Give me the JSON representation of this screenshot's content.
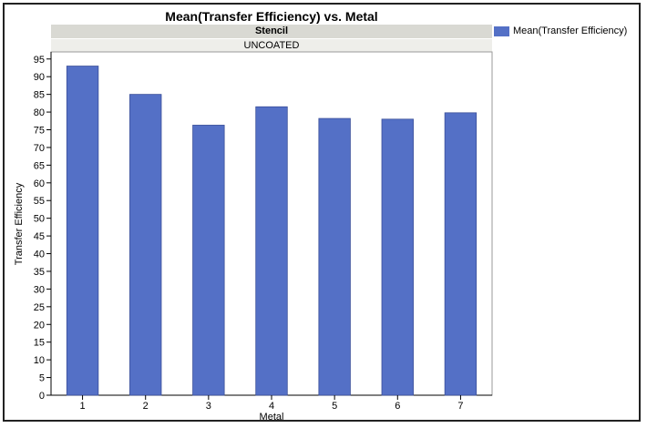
{
  "chart_data": {
    "type": "bar",
    "title": "Mean(Transfer Efficiency) vs. Metal",
    "facet_label": "Stencil",
    "facet_value": "UNCOATED",
    "xlabel": "Metal",
    "ylabel": "Transfer Efficiency",
    "categories": [
      "1",
      "2",
      "3",
      "4",
      "5",
      "6",
      "7"
    ],
    "series": [
      {
        "name": "Mean(Transfer Efficiency)",
        "values": [
          93,
          85,
          76.3,
          81.5,
          78.2,
          78,
          79.8
        ]
      }
    ],
    "ylim": [
      0,
      97
    ],
    "yticks": [
      0,
      5,
      10,
      15,
      20,
      25,
      30,
      35,
      40,
      45,
      50,
      55,
      60,
      65,
      70,
      75,
      80,
      85,
      90,
      95
    ],
    "bar_color": "#5470c6",
    "legend_position": "top-right",
    "grid": false
  }
}
